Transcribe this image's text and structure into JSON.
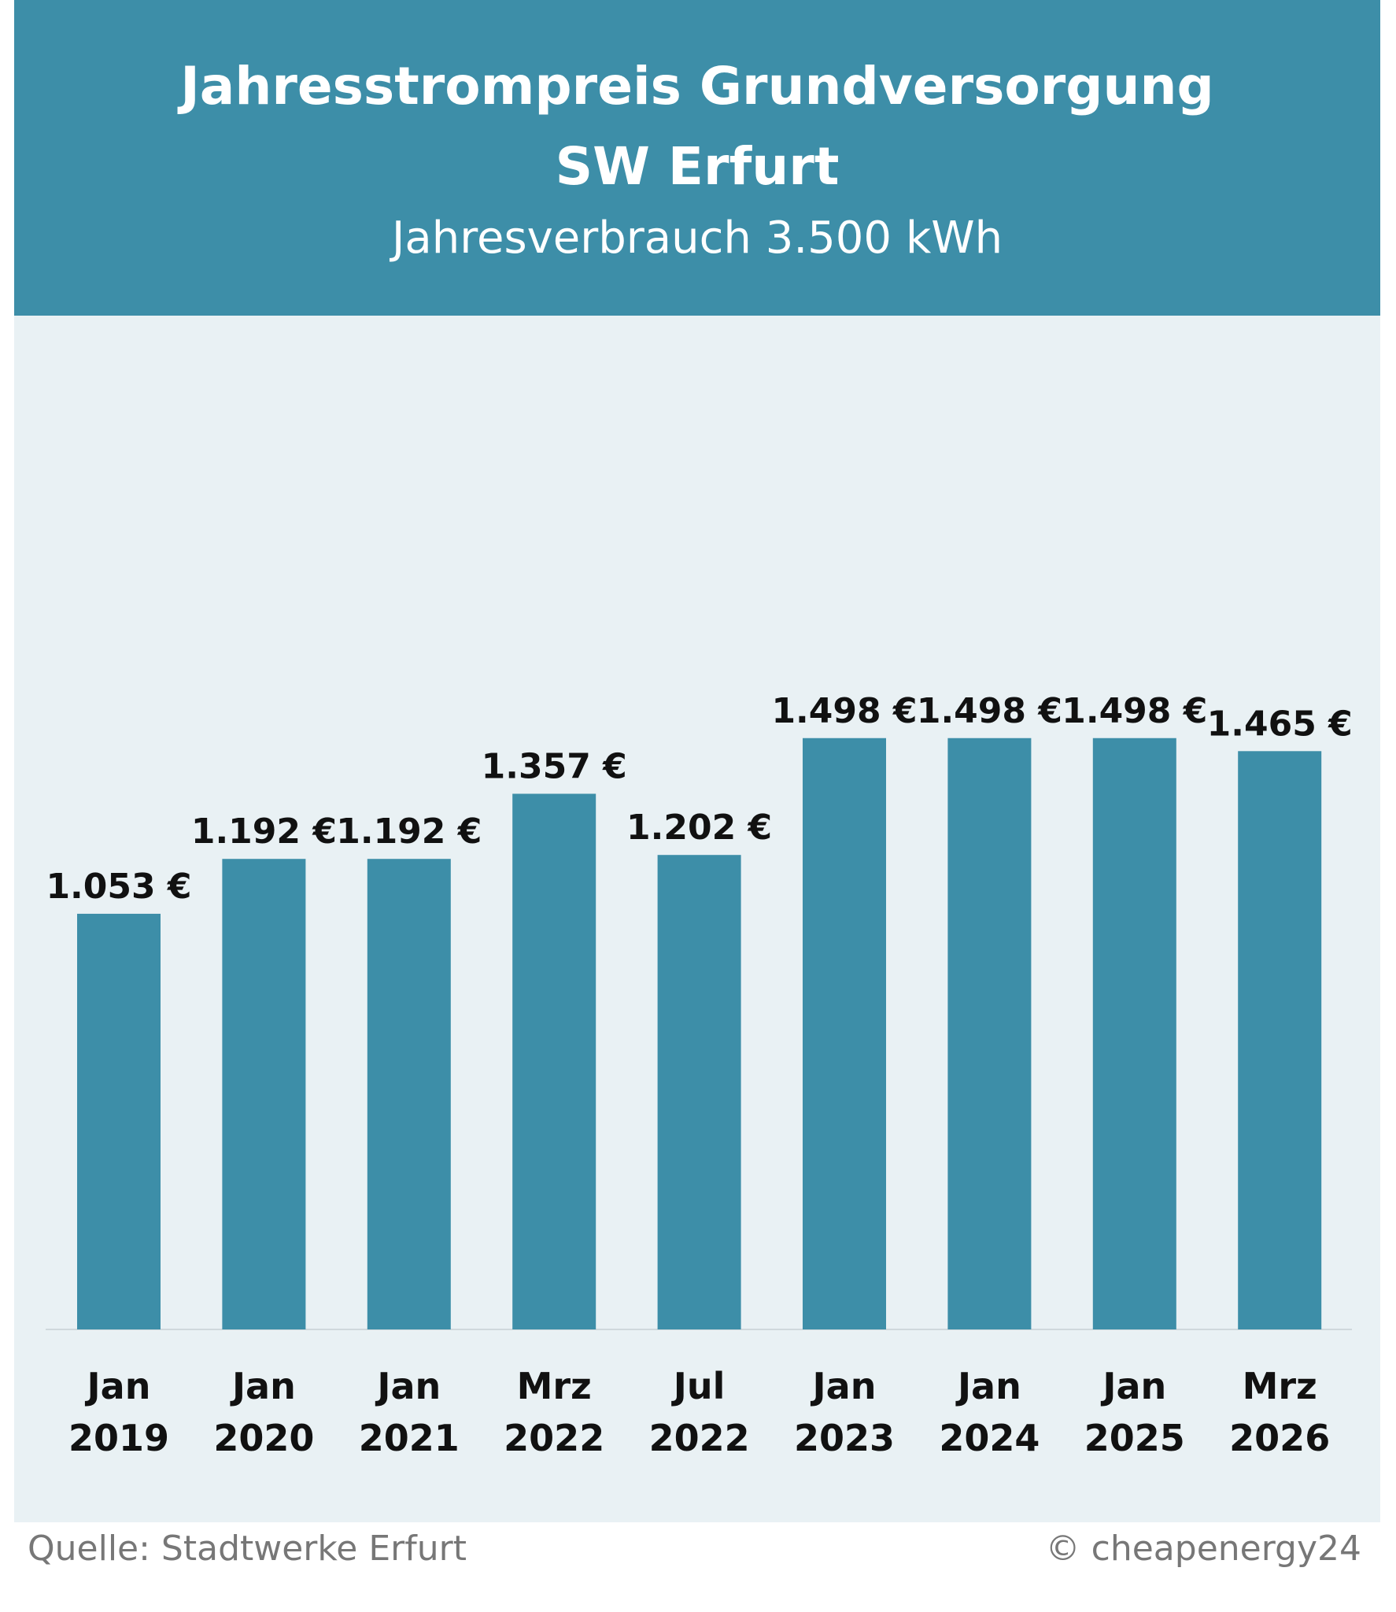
{
  "chart_data": {
    "type": "bar",
    "title": [
      "Jahresstrompreis Grundversorgung",
      "SW Erfurt"
    ],
    "subtitle": "Jahresverbrauch 3.500 kWh",
    "categories": [
      "Jan 2019",
      "Jan 2020",
      "Jan 2021",
      "Mrz 2022",
      "Jul 2022",
      "Jan 2023",
      "Jan 2024",
      "Jan 2025",
      "Mrz 2026"
    ],
    "values": [
      1053,
      1192,
      1192,
      1357,
      1202,
      1498,
      1498,
      1498,
      1465
    ],
    "value_labels": [
      "1.053 €",
      "1.192 €",
      "1.192 €",
      "1.357 €",
      "1.202 €",
      "1.498 €",
      "1.498 €",
      "1.498 €",
      "1.465 €"
    ],
    "color": "#3d8ea8",
    "ylim": [
      0,
      2000
    ],
    "source": "Quelle: Stadtwerke Erfurt",
    "credit": "© cheapenergy24"
  }
}
